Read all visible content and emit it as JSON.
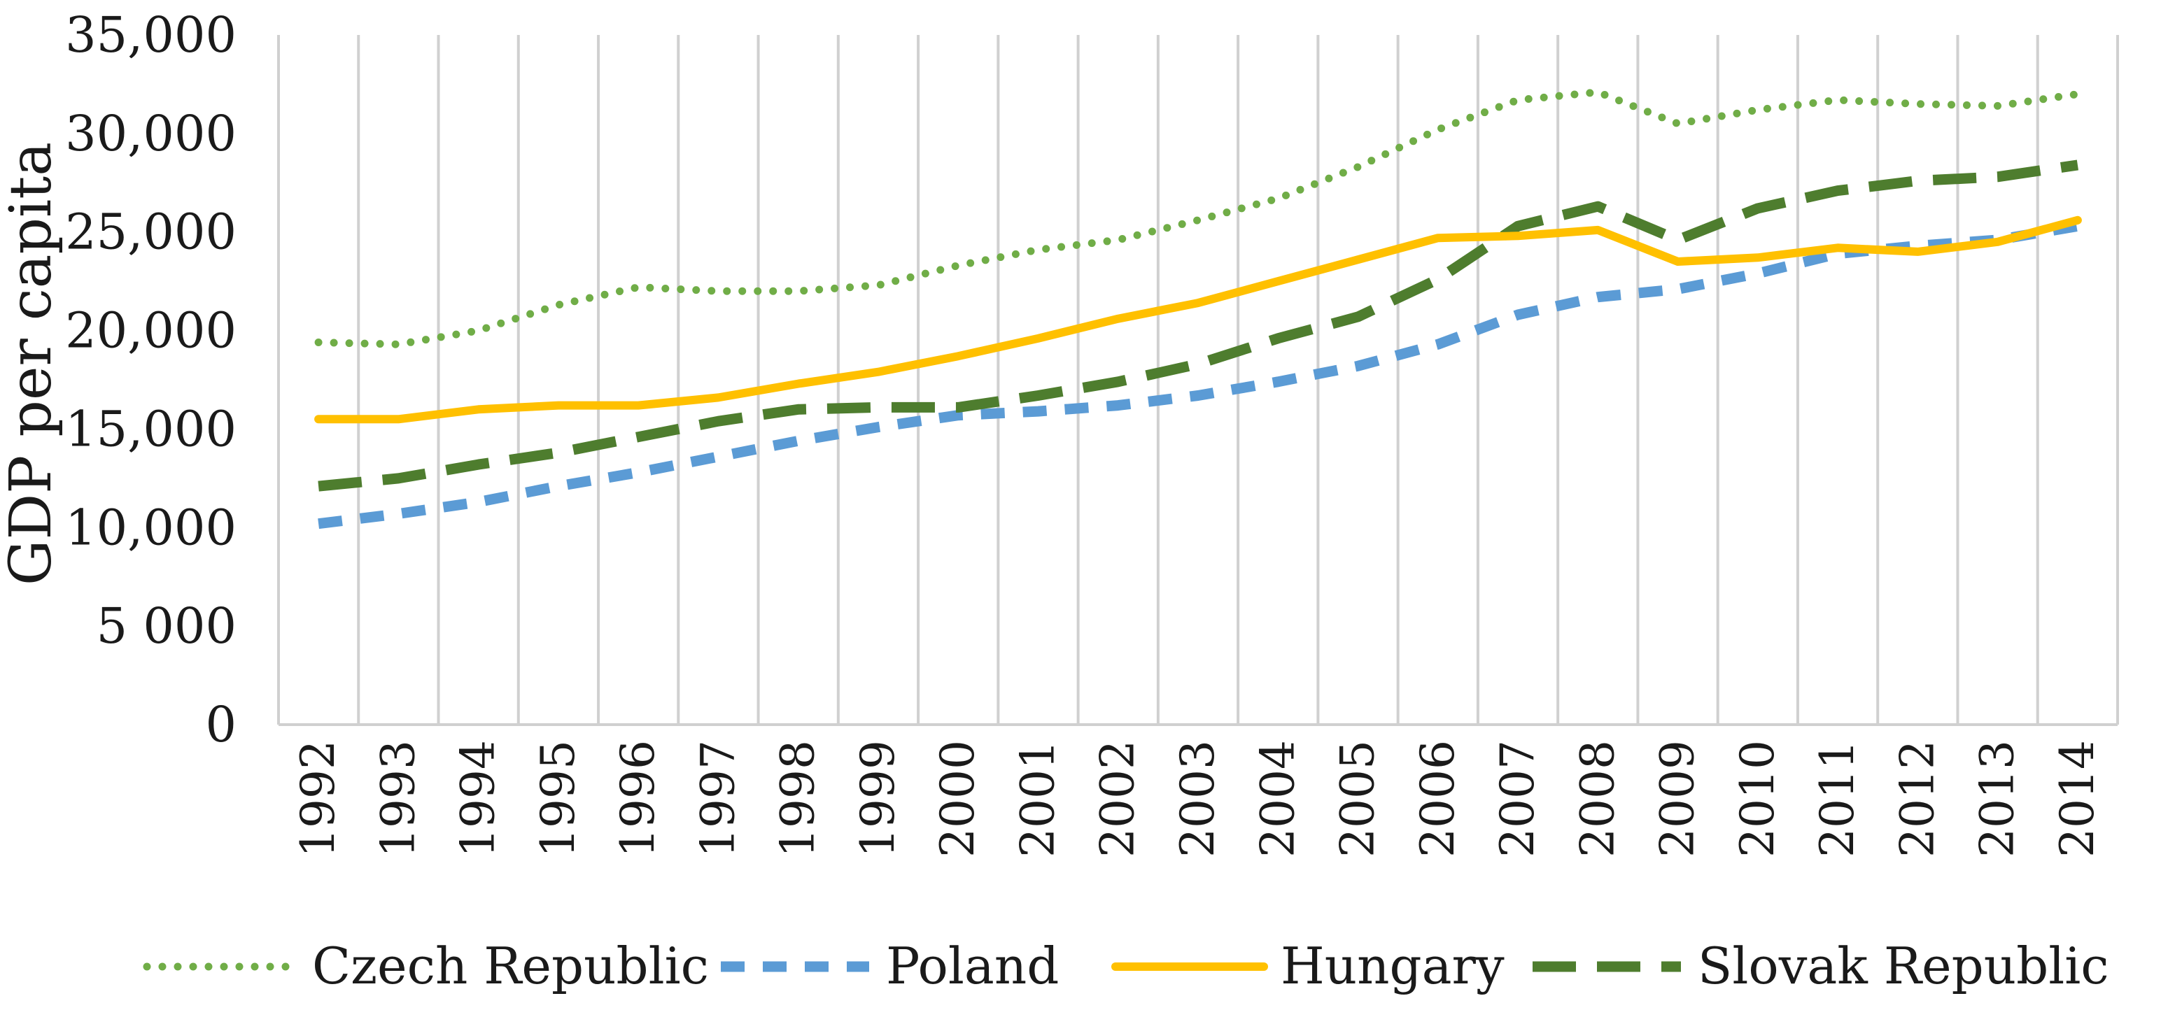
{
  "chart_data": {
    "type": "line",
    "title": "",
    "xlabel": "",
    "ylabel": "GDP per capita",
    "ylim": [
      0,
      35000
    ],
    "ytick_labels": [
      "0",
      "5 000",
      "10,000",
      "15,000",
      "20,000",
      "25,000",
      "30,000",
      "35,000"
    ],
    "categories": [
      "1992",
      "1993",
      "1994",
      "1995",
      "1996",
      "1997",
      "1998",
      "1999",
      "2000",
      "2001",
      "2002",
      "2003",
      "2004",
      "2005",
      "2006",
      "2007",
      "2008",
      "2009",
      "2010",
      "2011",
      "2012",
      "2013",
      "2014"
    ],
    "grid": "vertical",
    "legend_position": "bottom",
    "series": [
      {
        "name": "Czech Republic",
        "style": "dotted",
        "color": "#70AD47",
        "values": [
          19400,
          19300,
          20000,
          21300,
          22200,
          22000,
          22000,
          22300,
          23300,
          24100,
          24600,
          25600,
          26700,
          28300,
          30200,
          31700,
          32100,
          30500,
          31200,
          31700,
          31500,
          31400,
          32000
        ]
      },
      {
        "name": "Poland",
        "style": "dashed",
        "color": "#5B9BD5",
        "values": [
          10200,
          10700,
          11300,
          12100,
          12800,
          13600,
          14400,
          15100,
          15700,
          15900,
          16200,
          16700,
          17400,
          18200,
          19300,
          20800,
          21700,
          22100,
          22900,
          23900,
          24300,
          24600,
          25300
        ]
      },
      {
        "name": "Hungary",
        "style": "solid",
        "color": "#FFC000",
        "values": [
          15500,
          15500,
          16000,
          16200,
          16200,
          16600,
          17300,
          17900,
          18700,
          19600,
          20600,
          21400,
          22500,
          23600,
          24700,
          24800,
          25100,
          23500,
          23700,
          24200,
          24000,
          24500,
          25600
        ]
      },
      {
        "name": "Slovak Republic",
        "style": "longdash",
        "color": "#4E7D2E",
        "values": [
          12100,
          12500,
          13200,
          13800,
          14600,
          15400,
          16000,
          16100,
          16100,
          16700,
          17400,
          18300,
          19600,
          20700,
          22600,
          25300,
          26300,
          24600,
          26200,
          27100,
          27600,
          27800,
          28400
        ]
      }
    ]
  }
}
